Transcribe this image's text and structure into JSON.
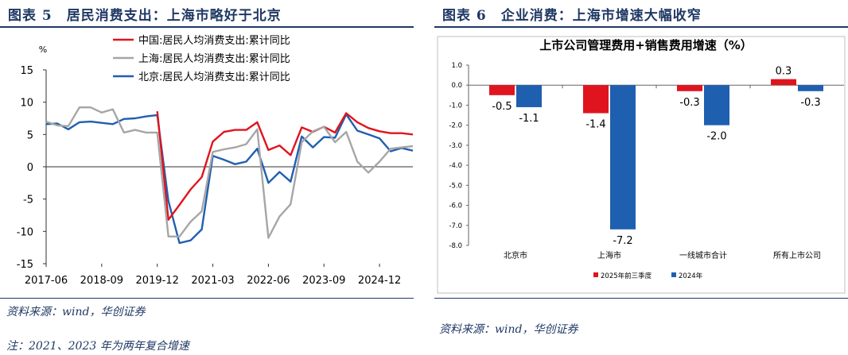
{
  "left": {
    "header": "图表 5　居民消费支出：上海市略好于北京",
    "source": "资料来源：wind，华创证券",
    "note": "注：2021、2023 年为两年复合增速",
    "chart_data": {
      "type": "line",
      "ylabel": "%",
      "ylim": [
        -15,
        15
      ],
      "yticks": [
        "15",
        "10",
        "5",
        "0",
        "-5",
        "-10",
        "-15"
      ],
      "xticks": [
        "2017-06",
        "2018-09",
        "2019-12",
        "2021-03",
        "2022-06",
        "2023-09",
        "2024-12"
      ],
      "legend_position": "top-right",
      "series": [
        {
          "name": "中国:居民人均消费支出:累计同比",
          "color": "#e0141e",
          "x": [
            "2019-12",
            "2020-03",
            "2020-06",
            "2020-09",
            "2020-12",
            "2021-03",
            "2021-06",
            "2021-09",
            "2021-12",
            "2022-03",
            "2022-06",
            "2022-09",
            "2022-12",
            "2023-03",
            "2023-06",
            "2023-09",
            "2023-12",
            "2024-03",
            "2024-06",
            "2024-09",
            "2024-12",
            "2025-03",
            "2025-06",
            "2025-09"
          ],
          "y": [
            8.6,
            -8.2,
            -5.9,
            -3.5,
            -1.6,
            3.9,
            5.4,
            5.7,
            5.7,
            6.9,
            2.6,
            3.3,
            1.8,
            6.1,
            5.4,
            6.2,
            5.3,
            8.3,
            6.9,
            6.0,
            5.5,
            5.2,
            5.2,
            5.0
          ]
        },
        {
          "name": "上海:居民人均消费支出:累计同比",
          "color": "#a6a6a6",
          "x": [
            "2017-06",
            "2017-09",
            "2017-12",
            "2018-03",
            "2018-06",
            "2018-09",
            "2018-12",
            "2019-03",
            "2019-06",
            "2019-09",
            "2019-12",
            "2020-03",
            "2020-06",
            "2020-09",
            "2020-12",
            "2021-03",
            "2021-06",
            "2021-09",
            "2021-12",
            "2022-03",
            "2022-06",
            "2022-09",
            "2022-12",
            "2023-03",
            "2023-06",
            "2023-09",
            "2023-12",
            "2024-03",
            "2024-06",
            "2024-09",
            "2024-12",
            "2025-03",
            "2025-06",
            "2025-09"
          ],
          "y": [
            7.0,
            6.4,
            6.3,
            9.2,
            9.2,
            8.4,
            8.9,
            5.3,
            5.7,
            5.3,
            5.3,
            -10.8,
            -10.8,
            -8.5,
            -6.9,
            2.3,
            2.7,
            3.0,
            3.5,
            5.8,
            -11.0,
            -7.7,
            -5.8,
            3.8,
            5.5,
            6.2,
            3.8,
            5.4,
            0.8,
            -0.9,
            0.8,
            2.8,
            3.0,
            3.2
          ]
        },
        {
          "name": "北京:居民人均消费支出:累计同比",
          "color": "#1f5fb0",
          "x": [
            "2017-06",
            "2017-09",
            "2017-12",
            "2018-03",
            "2018-06",
            "2018-09",
            "2018-12",
            "2019-03",
            "2019-06",
            "2019-09",
            "2019-12",
            "2020-03",
            "2020-06",
            "2020-09",
            "2020-12",
            "2021-03",
            "2021-06",
            "2021-09",
            "2021-12",
            "2022-03",
            "2022-06",
            "2022-09",
            "2022-12",
            "2023-03",
            "2023-06",
            "2023-09",
            "2023-12",
            "2024-03",
            "2024-06",
            "2024-09",
            "2024-12",
            "2025-03",
            "2025-06",
            "2025-09"
          ],
          "y": [
            6.6,
            6.7,
            5.8,
            6.9,
            7.0,
            6.8,
            6.6,
            7.4,
            7.5,
            7.8,
            8.0,
            -5.3,
            -11.8,
            -11.4,
            -9.7,
            1.7,
            1.1,
            0.4,
            0.8,
            2.8,
            -2.5,
            -0.8,
            -2.3,
            4.7,
            3.0,
            4.6,
            4.5,
            8.1,
            5.6,
            5.0,
            4.4,
            2.4,
            2.9,
            2.5
          ]
        }
      ]
    }
  },
  "right": {
    "header": "图表 6　企业消费：上海市增速大幅收窄",
    "source": "资料来源：wind，华创证券",
    "chart_data": {
      "type": "bar",
      "title": "上市公司管理费用+销售费用增速（%）",
      "categories": [
        "北京市",
        "上海市",
        "一线城市合计",
        "所有上市公司"
      ],
      "ylim": [
        -8.0,
        1.0
      ],
      "yticks": [
        "1.0",
        "0.0",
        "-1.0",
        "-2.0",
        "-3.0",
        "-4.0",
        "-5.0",
        "-6.0",
        "-7.0",
        "-8.0"
      ],
      "legend_position": "bottom",
      "series": [
        {
          "name": "2025年前三季度",
          "color": "#e0141e",
          "values": [
            -0.5,
            -1.4,
            -0.3,
            0.3
          ],
          "labels": [
            "-0.5",
            "-1.4",
            "-0.3",
            "0.3"
          ]
        },
        {
          "name": "2024年",
          "color": "#1f5fb0",
          "values": [
            -1.1,
            -7.2,
            -2.0,
            -0.3
          ],
          "labels": [
            "-1.1",
            "-7.2",
            "-2.0",
            "-0.3"
          ]
        }
      ]
    }
  }
}
